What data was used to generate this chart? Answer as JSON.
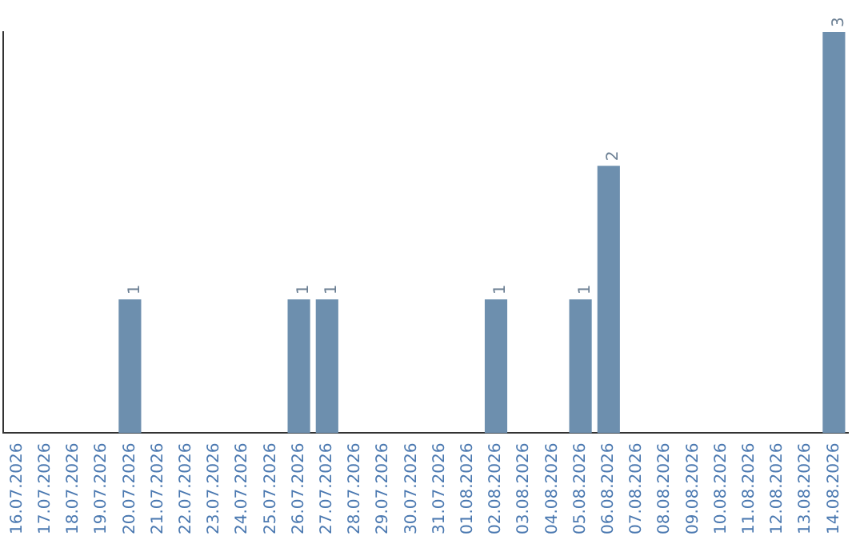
{
  "chart_data": {
    "type": "bar",
    "categories": [
      "16.07.2026",
      "17.07.2026",
      "18.07.2026",
      "19.07.2026",
      "20.07.2026",
      "21.07.2026",
      "22.07.2026",
      "23.07.2026",
      "24.07.2026",
      "25.07.2026",
      "26.07.2026",
      "27.07.2026",
      "28.07.2026",
      "29.07.2026",
      "30.07.2026",
      "31.07.2026",
      "01.08.2026",
      "02.08.2026",
      "03.08.2026",
      "04.08.2026",
      "05.08.2026",
      "06.08.2026",
      "07.08.2026",
      "08.08.2026",
      "09.08.2026",
      "10.08.2026",
      "11.08.2026",
      "12.08.2026",
      "13.08.2026",
      "14.08.2026"
    ],
    "values": [
      0,
      0,
      0,
      0,
      1,
      0,
      0,
      0,
      0,
      0,
      1,
      1,
      0,
      0,
      0,
      0,
      0,
      1,
      0,
      0,
      1,
      2,
      0,
      0,
      0,
      0,
      0,
      0,
      0,
      3
    ],
    "value_labels": [
      null,
      null,
      null,
      null,
      "1",
      null,
      null,
      null,
      null,
      null,
      "1",
      "1",
      null,
      null,
      null,
      null,
      null,
      "1",
      null,
      null,
      "1",
      "2",
      null,
      null,
      null,
      null,
      null,
      null,
      null,
      "3"
    ],
    "color": "#6d8fae",
    "grid": false,
    "legend": false,
    "tick_labels": "x"
  }
}
